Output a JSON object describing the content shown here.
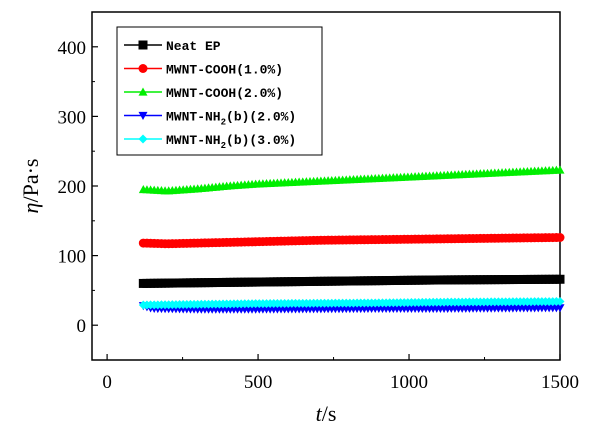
{
  "chart_data": {
    "type": "scatter",
    "x_axis": {
      "label_var": "t",
      "label_unit": "/s",
      "range": [
        -50,
        1500
      ],
      "ticks": [
        0,
        500,
        1000,
        1500
      ],
      "tick_labels": [
        "0",
        "500",
        "1000",
        "1500"
      ]
    },
    "y_axis": {
      "label_var": "η",
      "label_unit": "/Pa·s",
      "range": [
        -50,
        450
      ],
      "ticks": [
        0,
        100,
        200,
        300,
        400
      ],
      "tick_labels": [
        "0",
        "100",
        "200",
        "300",
        "400"
      ]
    },
    "legend": {
      "placement": "top-left",
      "entries": [
        {
          "text": "Neat EP",
          "sub": ""
        },
        {
          "text": "MWNT-COOH(1.0%)",
          "sub": ""
        },
        {
          "text": "MWNT-COOH(2.0%)",
          "sub": ""
        },
        {
          "text": "MWNT-NH",
          "sub": "2",
          "rest": "(b)(2.0%)"
        },
        {
          "text": "MWNT-NH",
          "sub": "2",
          "rest": "(b)(3.0%)"
        }
      ]
    },
    "series": [
      {
        "name": "Neat EP",
        "color": "#000000",
        "marker": "square",
        "points": [
          [
            120,
            60
          ],
          [
            300,
            61
          ],
          [
            500,
            62
          ],
          [
            700,
            63
          ],
          [
            900,
            64
          ],
          [
            1100,
            65
          ],
          [
            1300,
            65.5
          ],
          [
            1500,
            66
          ]
        ]
      },
      {
        "name": "MWNT-COOH(1.0%)",
        "color": "#ff0000",
        "marker": "circle",
        "points": [
          [
            120,
            118
          ],
          [
            200,
            117
          ],
          [
            300,
            118
          ],
          [
            500,
            120
          ],
          [
            700,
            122
          ],
          [
            900,
            123
          ],
          [
            1100,
            124
          ],
          [
            1300,
            125
          ],
          [
            1500,
            126
          ]
        ]
      },
      {
        "name": "MWNT-COOH(2.0%)",
        "color": "#00ee00",
        "marker": "triangle-up",
        "points": [
          [
            120,
            195
          ],
          [
            200,
            193
          ],
          [
            300,
            196
          ],
          [
            400,
            200
          ],
          [
            500,
            203
          ],
          [
            700,
            207
          ],
          [
            900,
            211
          ],
          [
            1100,
            215
          ],
          [
            1300,
            219
          ],
          [
            1500,
            223
          ]
        ]
      },
      {
        "name": "MWNT-NH2(b)(2.0%)",
        "color": "#0000ff",
        "marker": "triangle-down",
        "points": [
          [
            120,
            28
          ],
          [
            150,
            24
          ],
          [
            300,
            23
          ],
          [
            500,
            23
          ],
          [
            700,
            23.5
          ],
          [
            900,
            24
          ],
          [
            1100,
            24
          ],
          [
            1300,
            24.5
          ],
          [
            1500,
            25
          ]
        ]
      },
      {
        "name": "MWNT-NH2(b)(3.0%)",
        "color": "#00ffff",
        "marker": "diamond",
        "points": [
          [
            120,
            29
          ],
          [
            300,
            30
          ],
          [
            500,
            31
          ],
          [
            700,
            31.5
          ],
          [
            900,
            32
          ],
          [
            1100,
            33
          ],
          [
            1300,
            33.5
          ],
          [
            1500,
            34
          ]
        ]
      }
    ]
  }
}
